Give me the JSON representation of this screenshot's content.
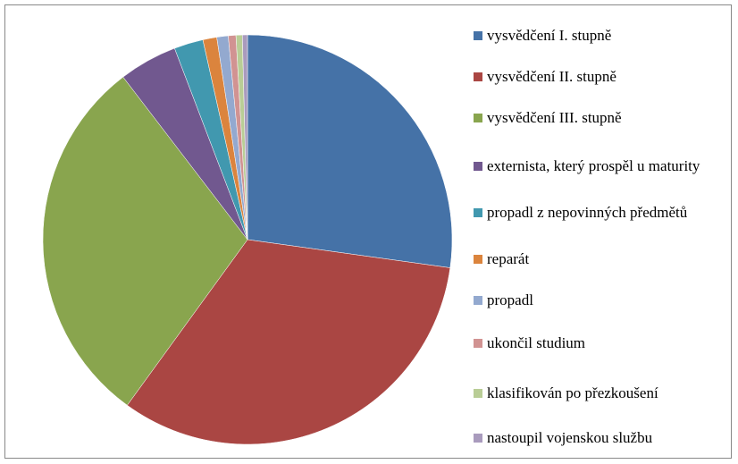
{
  "chart_data": {
    "type": "pie",
    "categories": [
      "vysvědčení I. stupně",
      "vysvědčení II. stupně",
      "vysvědčení III. stupně",
      "externista, který prospěl u maturity",
      "propadl z nepovinných předmětů",
      "reparát",
      "propadl",
      "ukončil studium",
      "klasifikován po přezkoušení",
      "nastoupil vojenskou službu"
    ],
    "values": [
      27.2,
      32.8,
      29.6,
      4.6,
      2.3,
      1.1,
      0.9,
      0.6,
      0.5,
      0.4
    ],
    "colors": [
      "#4572A7",
      "#AA4643",
      "#89A54E",
      "#71588F",
      "#4198AF",
      "#DB843D",
      "#93A9CF",
      "#D19392",
      "#B9CD96",
      "#A99BBD"
    ],
    "legend": "right"
  }
}
